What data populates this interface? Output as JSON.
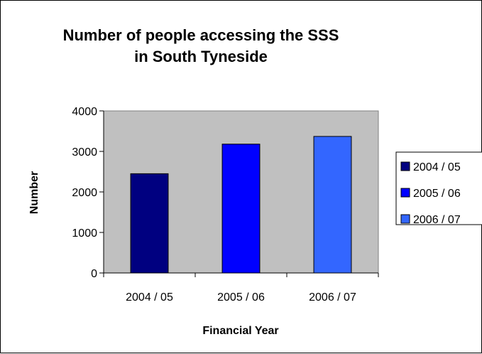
{
  "chart_data": {
    "type": "bar",
    "title": [
      "Number of people accessing the SSS",
      "in South Tyneside"
    ],
    "xlabel": "Financial Year",
    "ylabel": "Number",
    "categories": [
      "2004 / 05",
      "2005 / 06",
      "2006 / 07"
    ],
    "values": [
      2450,
      3180,
      3370
    ],
    "colors": [
      "#000080",
      "#0000FF",
      "#3366FF"
    ],
    "ylim": [
      0,
      4000
    ],
    "yticks": [
      0,
      1000,
      2000,
      3000,
      4000
    ],
    "ytick_labels": [
      "0",
      "1000",
      "2000",
      "3000",
      "4000"
    ],
    "grid": false,
    "plot_background": "#C0C0C0",
    "legend": {
      "position": "right",
      "entries": [
        "2004 / 05",
        "2005 / 06",
        "2006 / 07"
      ]
    }
  }
}
